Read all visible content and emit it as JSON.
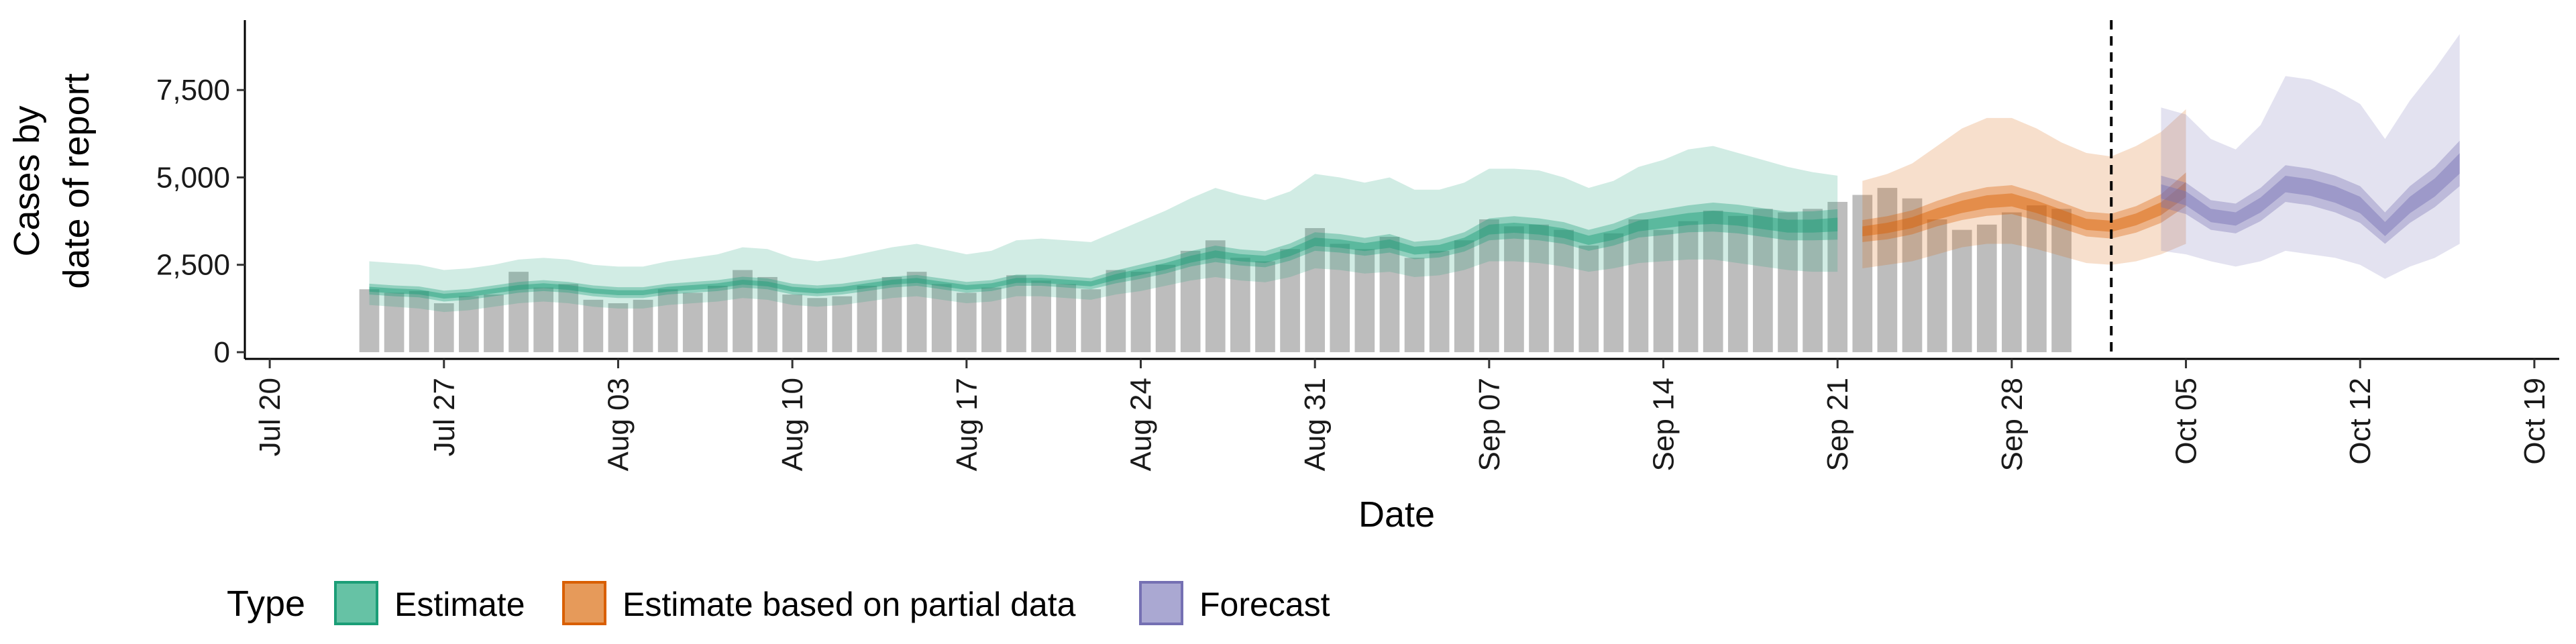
{
  "chart_data": {
    "type": "bar",
    "title": "",
    "xlabel": "Date",
    "ylabel": [
      "Cases by",
      "date of report"
    ],
    "x_ticks": [
      "Jul 20",
      "Jul 27",
      "Aug 03",
      "Aug 10",
      "Aug 17",
      "Aug 24",
      "Aug 31",
      "Sep 07",
      "Sep 14",
      "Sep 21",
      "Sep 28",
      "Oct 05",
      "Oct 12",
      "Oct 19"
    ],
    "y_ticks": [
      "0",
      "2,500",
      "5,000",
      "7,500"
    ],
    "ylim": [
      0,
      9500
    ],
    "xlim": [
      "2020-07-19",
      "2020-10-20"
    ],
    "grid": false,
    "forecast_date": "2020-10-02",
    "legend": {
      "title": "Type",
      "position": "bottom",
      "entries": [
        {
          "label": "Estimate",
          "fill": "#66c2a5",
          "stroke": "#1b9e77"
        },
        {
          "label": "Estimate based on partial data",
          "fill": "#e69a5a",
          "stroke": "#d95f02"
        },
        {
          "label": "Forecast",
          "fill": "#aaa8d2",
          "stroke": "#7570b3"
        }
      ]
    },
    "colors": {
      "bars": "#bdbdbd",
      "estimate": "#1b9e77",
      "partial": "#d95f02",
      "forecast": "#7570b3",
      "vline": "#000000"
    },
    "bars": {
      "start_date": "2020-07-24",
      "values": [
        1800,
        1700,
        1750,
        1400,
        1600,
        1650,
        2300,
        1850,
        1950,
        1500,
        1400,
        1500,
        1800,
        1700,
        1900,
        2350,
        2150,
        1650,
        1550,
        1600,
        1900,
        2150,
        2300,
        1950,
        1700,
        1850,
        2200,
        2050,
        1950,
        1800,
        2350,
        2300,
        2500,
        2900,
        3200,
        2700,
        2600,
        2950,
        3550,
        3100,
        2950,
        3300,
        2700,
        2900,
        3200,
        3800,
        3600,
        3650,
        3500,
        3050,
        3400,
        3800,
        3500,
        3750,
        4050,
        3900,
        4100,
        4000,
        4100,
        4300,
        4500,
        4700,
        4400,
        3800,
        3500,
        3650,
        4000,
        4200,
        4100
      ]
    },
    "series": [
      {
        "name": "Estimate",
        "start_date": "2020-07-24",
        "median": [
          1800,
          1750,
          1720,
          1600,
          1650,
          1750,
          1850,
          1900,
          1850,
          1750,
          1700,
          1700,
          1800,
          1850,
          1900,
          2000,
          1950,
          1800,
          1750,
          1800,
          1900,
          2000,
          2050,
          1950,
          1850,
          1900,
          2050,
          2050,
          2000,
          1950,
          2150,
          2300,
          2450,
          2650,
          2800,
          2700,
          2650,
          2850,
          3150,
          3100,
          3000,
          3100,
          2900,
          2950,
          3150,
          3500,
          3550,
          3500,
          3400,
          3200,
          3350,
          3600,
          3700,
          3800,
          3850,
          3800,
          3700,
          3600,
          3600,
          3650
        ],
        "p25": [
          1650,
          1600,
          1570,
          1450,
          1500,
          1600,
          1700,
          1750,
          1700,
          1600,
          1550,
          1550,
          1650,
          1700,
          1750,
          1850,
          1800,
          1650,
          1600,
          1650,
          1750,
          1850,
          1900,
          1800,
          1700,
          1750,
          1900,
          1900,
          1850,
          1800,
          1970,
          2100,
          2250,
          2450,
          2580,
          2480,
          2430,
          2620,
          2900,
          2850,
          2760,
          2850,
          2660,
          2710,
          2880,
          3200,
          3250,
          3200,
          3100,
          2900,
          3050,
          3280,
          3350,
          3430,
          3450,
          3400,
          3300,
          3200,
          3200,
          3220
        ],
        "p75": [
          1960,
          1910,
          1880,
          1760,
          1810,
          1910,
          2010,
          2060,
          2010,
          1910,
          1860,
          1860,
          1960,
          2010,
          2060,
          2160,
          2110,
          1960,
          1910,
          1960,
          2060,
          2160,
          2210,
          2110,
          2010,
          2060,
          2220,
          2220,
          2170,
          2120,
          2340,
          2510,
          2680,
          2890,
          3050,
          2940,
          2890,
          3110,
          3430,
          3380,
          3270,
          3380,
          3160,
          3220,
          3430,
          3830,
          3890,
          3830,
          3720,
          3500,
          3680,
          3960,
          4080,
          4200,
          4280,
          4220,
          4120,
          4020,
          4030,
          4090
        ],
        "p05": [
          1350,
          1300,
          1250,
          1150,
          1200,
          1300,
          1400,
          1450,
          1400,
          1300,
          1250,
          1250,
          1350,
          1400,
          1450,
          1550,
          1500,
          1350,
          1300,
          1350,
          1450,
          1550,
          1600,
          1500,
          1400,
          1450,
          1600,
          1600,
          1550,
          1500,
          1650,
          1750,
          1900,
          2050,
          2150,
          2050,
          2000,
          2150,
          2400,
          2350,
          2250,
          2300,
          2150,
          2200,
          2350,
          2600,
          2600,
          2550,
          2450,
          2300,
          2400,
          2550,
          2600,
          2650,
          2650,
          2550,
          2450,
          2350,
          2300,
          2300
        ],
        "p95": [
          2600,
          2550,
          2500,
          2350,
          2400,
          2500,
          2650,
          2700,
          2650,
          2500,
          2450,
          2450,
          2600,
          2700,
          2800,
          3000,
          2950,
          2700,
          2600,
          2700,
          2850,
          3000,
          3100,
          2950,
          2800,
          2900,
          3200,
          3250,
          3200,
          3150,
          3450,
          3750,
          4050,
          4400,
          4700,
          4500,
          4350,
          4600,
          5100,
          5000,
          4850,
          5000,
          4650,
          4650,
          4850,
          5250,
          5250,
          5200,
          5000,
          4700,
          4900,
          5300,
          5500,
          5800,
          5900,
          5700,
          5500,
          5300,
          5150,
          5050
        ]
      },
      {
        "name": "Estimate based on partial data",
        "start_date": "2020-09-22",
        "median": [
          3450,
          3550,
          3700,
          3950,
          4150,
          4300,
          4350,
          4150,
          3900,
          3650,
          3600,
          3800,
          4100,
          4650
        ],
        "p25": [
          3150,
          3230,
          3370,
          3600,
          3780,
          3900,
          3950,
          3770,
          3540,
          3310,
          3250,
          3420,
          3700,
          4180
        ],
        "p75": [
          3780,
          3890,
          4060,
          4330,
          4560,
          4720,
          4780,
          4560,
          4290,
          4020,
          3960,
          4180,
          4520,
          5140
        ],
        "p05": [
          2400,
          2500,
          2600,
          2800,
          3000,
          3100,
          3100,
          2950,
          2750,
          2550,
          2500,
          2600,
          2800,
          3100
        ],
        "p95": [
          4900,
          5100,
          5400,
          5900,
          6400,
          6700,
          6700,
          6400,
          6000,
          5700,
          5600,
          5900,
          6300,
          6950
        ]
      },
      {
        "name": "Forecast",
        "start_date": "2020-10-04",
        "median": [
          4600,
          4400,
          3900,
          3800,
          4200,
          4800,
          4700,
          4500,
          4200,
          3500,
          4200,
          4700,
          5400
        ],
        "p25": [
          4150,
          3950,
          3500,
          3400,
          3750,
          4300,
          4200,
          4000,
          3700,
          3100,
          3700,
          4150,
          4750
        ],
        "p75": [
          5050,
          4850,
          4350,
          4250,
          4700,
          5350,
          5250,
          5050,
          4750,
          4000,
          4750,
          5300,
          6050
        ],
        "p05": [
          2900,
          2800,
          2600,
          2450,
          2600,
          2900,
          2800,
          2700,
          2500,
          2100,
          2450,
          2700,
          3100
        ],
        "p95": [
          7000,
          6800,
          6100,
          5800,
          6500,
          7900,
          7800,
          7500,
          7100,
          6100,
          7200,
          8100,
          9100
        ]
      }
    ]
  }
}
